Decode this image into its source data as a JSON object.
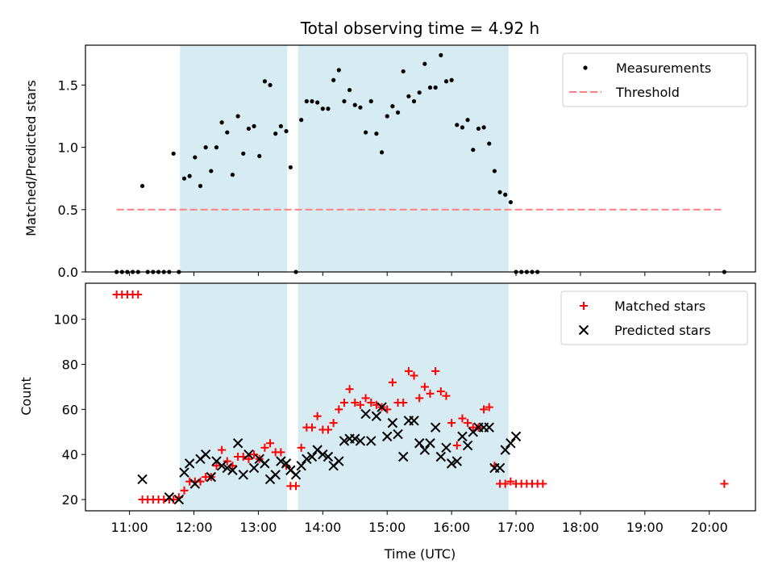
{
  "figure": {
    "title": "Total observing time = 4.92 h"
  },
  "chart_data": [
    {
      "type": "scatter",
      "panel": "top",
      "title": "Total observing time = 4.92 h",
      "xlabel": "",
      "ylabel": "Matched/Predicted stars",
      "xlim": [
        "10:19",
        "20:43"
      ],
      "ylim": [
        0,
        1.82
      ],
      "yticks": [
        0.0,
        0.5,
        1.0,
        1.5
      ],
      "ytick_labels": [
        "0.0",
        "0.5",
        "1.0",
        "1.5"
      ],
      "grid": false,
      "legend": "top-right",
      "shaded_intervals": [
        [
          "11:47",
          "13:27"
        ],
        [
          "13:37",
          "16:53"
        ]
      ],
      "series": [
        {
          "name": "Measurements",
          "style": "points",
          "color": "#000000",
          "points": [
            [
              "10:48",
              0.0
            ],
            [
              "10:53",
              0.0
            ],
            [
              "10:58",
              0.0
            ],
            [
              "11:03",
              0.0
            ],
            [
              "11:08",
              0.0
            ],
            [
              "11:12",
              0.69
            ],
            [
              "11:17",
              0.0
            ],
            [
              "11:22",
              0.0
            ],
            [
              "11:27",
              0.0
            ],
            [
              "11:32",
              0.0
            ],
            [
              "11:37",
              0.0
            ],
            [
              "11:41",
              0.95
            ],
            [
              "11:46",
              0.0
            ],
            [
              "11:51",
              0.75
            ],
            [
              "11:56",
              0.77
            ],
            [
              "12:01",
              0.92
            ],
            [
              "12:06",
              0.69
            ],
            [
              "12:11",
              1.0
            ],
            [
              "12:16",
              0.81
            ],
            [
              "12:21",
              1.0
            ],
            [
              "12:26",
              1.2
            ],
            [
              "12:31",
              1.12
            ],
            [
              "12:36",
              0.78
            ],
            [
              "12:41",
              1.25
            ],
            [
              "12:46",
              0.95
            ],
            [
              "12:51",
              1.15
            ],
            [
              "12:56",
              1.17
            ],
            [
              "13:01",
              0.93
            ],
            [
              "13:06",
              1.53
            ],
            [
              "13:11",
              1.5
            ],
            [
              "13:16",
              1.11
            ],
            [
              "13:21",
              1.17
            ],
            [
              "13:26",
              1.13
            ],
            [
              "13:30",
              0.84
            ],
            [
              "13:35",
              0.0
            ],
            [
              "13:40",
              1.22
            ],
            [
              "13:45",
              1.37
            ],
            [
              "13:50",
              1.37
            ],
            [
              "13:55",
              1.36
            ],
            [
              "14:00",
              1.31
            ],
            [
              "14:05",
              1.31
            ],
            [
              "14:10",
              1.54
            ],
            [
              "14:15",
              1.62
            ],
            [
              "14:20",
              1.37
            ],
            [
              "14:25",
              1.46
            ],
            [
              "14:30",
              1.34
            ],
            [
              "14:35",
              1.32
            ],
            [
              "14:40",
              1.12
            ],
            [
              "14:45",
              1.37
            ],
            [
              "14:50",
              1.11
            ],
            [
              "14:55",
              0.96
            ],
            [
              "15:00",
              1.25
            ],
            [
              "15:05",
              1.33
            ],
            [
              "15:10",
              1.28
            ],
            [
              "15:15",
              1.61
            ],
            [
              "15:20",
              1.41
            ],
            [
              "15:25",
              1.37
            ],
            [
              "15:30",
              1.44
            ],
            [
              "15:35",
              1.67
            ],
            [
              "15:40",
              1.48
            ],
            [
              "15:45",
              1.48
            ],
            [
              "15:50",
              1.74
            ],
            [
              "15:55",
              1.53
            ],
            [
              "16:00",
              1.54
            ],
            [
              "16:05",
              1.18
            ],
            [
              "16:10",
              1.16
            ],
            [
              "16:15",
              1.22
            ],
            [
              "16:20",
              0.98
            ],
            [
              "16:25",
              1.15
            ],
            [
              "16:30",
              1.16
            ],
            [
              "16:35",
              1.03
            ],
            [
              "16:40",
              0.81
            ],
            [
              "16:45",
              0.64
            ],
            [
              "16:50",
              0.62
            ],
            [
              "16:55",
              0.56
            ],
            [
              "17:00",
              0.0
            ],
            [
              "17:05",
              0.0
            ],
            [
              "17:10",
              0.0
            ],
            [
              "17:15",
              0.0
            ],
            [
              "17:20",
              0.0
            ],
            [
              "20:14",
              0.0
            ]
          ]
        },
        {
          "name": "Threshold",
          "style": "dashed-line",
          "color": "#ff8080",
          "points": [
            [
              "10:48",
              0.5
            ],
            [
              "20:14",
              0.5
            ]
          ]
        }
      ]
    },
    {
      "type": "scatter",
      "panel": "bottom",
      "title": "",
      "xlabel": "Time (UTC)",
      "ylabel": "Count",
      "xlim": [
        "10:19",
        "20:43"
      ],
      "ylim": [
        15,
        116
      ],
      "yticks": [
        20,
        40,
        60,
        80,
        100
      ],
      "ytick_labels": [
        "20",
        "40",
        "60",
        "80",
        "100"
      ],
      "xticks": [
        "11:00",
        "12:00",
        "13:00",
        "14:00",
        "15:00",
        "16:00",
        "17:00",
        "18:00",
        "19:00",
        "20:00"
      ],
      "xtick_labels": [
        "11:00",
        "12:00",
        "13:00",
        "14:00",
        "15:00",
        "16:00",
        "17:00",
        "18:00",
        "19:00",
        "20:00"
      ],
      "grid": false,
      "legend": "top-right",
      "shaded_intervals": [
        [
          "11:47",
          "13:27"
        ],
        [
          "13:37",
          "16:53"
        ]
      ],
      "series": [
        {
          "name": "Matched stars",
          "marker": "plus",
          "color": "#ff0000",
          "points": [
            [
              "10:48",
              111
            ],
            [
              "10:53",
              111
            ],
            [
              "10:58",
              111
            ],
            [
              "11:03",
              111
            ],
            [
              "11:08",
              111
            ],
            [
              "11:12",
              20
            ],
            [
              "11:17",
              20
            ],
            [
              "11:22",
              20
            ],
            [
              "11:27",
              20
            ],
            [
              "11:32",
              20
            ],
            [
              "11:37",
              20
            ],
            [
              "11:41",
              20
            ],
            [
              "11:46",
              21
            ],
            [
              "11:51",
              24
            ],
            [
              "11:56",
              28
            ],
            [
              "12:01",
              28
            ],
            [
              "12:06",
              28
            ],
            [
              "12:11",
              30
            ],
            [
              "12:16",
              30
            ],
            [
              "12:21",
              35
            ],
            [
              "12:26",
              42
            ],
            [
              "12:31",
              37
            ],
            [
              "12:36",
              35
            ],
            [
              "12:41",
              39
            ],
            [
              "12:46",
              39
            ],
            [
              "12:51",
              38
            ],
            [
              "12:56",
              40
            ],
            [
              "13:01",
              38
            ],
            [
              "13:06",
              43
            ],
            [
              "13:11",
              45
            ],
            [
              "13:16",
              41
            ],
            [
              "13:21",
              41
            ],
            [
              "13:26",
              35
            ],
            [
              "13:30",
              26
            ],
            [
              "13:35",
              26
            ],
            [
              "13:40",
              43
            ],
            [
              "13:45",
              52
            ],
            [
              "13:50",
              52
            ],
            [
              "13:55",
              57
            ],
            [
              "14:00",
              51
            ],
            [
              "14:05",
              51
            ],
            [
              "14:10",
              54
            ],
            [
              "14:15",
              60
            ],
            [
              "14:20",
              63
            ],
            [
              "14:25",
              69
            ],
            [
              "14:30",
              63
            ],
            [
              "14:35",
              62
            ],
            [
              "14:40",
              65
            ],
            [
              "14:45",
              63
            ],
            [
              "14:50",
              62
            ],
            [
              "14:55",
              61
            ],
            [
              "15:00",
              60
            ],
            [
              "15:05",
              72
            ],
            [
              "15:10",
              63
            ],
            [
              "15:15",
              63
            ],
            [
              "15:20",
              77
            ],
            [
              "15:25",
              75
            ],
            [
              "15:30",
              65
            ],
            [
              "15:35",
              70
            ],
            [
              "15:40",
              67
            ],
            [
              "15:45",
              77
            ],
            [
              "15:50",
              68
            ],
            [
              "15:55",
              66
            ],
            [
              "16:00",
              54
            ],
            [
              "16:05",
              44
            ],
            [
              "16:10",
              56
            ],
            [
              "16:15",
              54
            ],
            [
              "16:20",
              52
            ],
            [
              "16:25",
              52
            ],
            [
              "16:30",
              60
            ],
            [
              "16:35",
              61
            ],
            [
              "16:40",
              35
            ],
            [
              "16:45",
              27
            ],
            [
              "16:50",
              27
            ],
            [
              "16:55",
              28
            ],
            [
              "17:00",
              27
            ],
            [
              "17:05",
              27
            ],
            [
              "17:10",
              27
            ],
            [
              "17:15",
              27
            ],
            [
              "17:20",
              27
            ],
            [
              "17:25",
              27
            ],
            [
              "20:14",
              27
            ]
          ]
        },
        {
          "name": "Predicted stars",
          "marker": "x",
          "color": "#000000",
          "points": [
            [
              "11:12",
              29
            ],
            [
              "11:37",
              21
            ],
            [
              "11:46",
              20
            ],
            [
              "11:51",
              32
            ],
            [
              "11:56",
              36
            ],
            [
              "12:01",
              27
            ],
            [
              "12:06",
              38
            ],
            [
              "12:11",
              40
            ],
            [
              "12:16",
              30
            ],
            [
              "12:21",
              37
            ],
            [
              "12:26",
              35
            ],
            [
              "12:31",
              34
            ],
            [
              "12:36",
              33
            ],
            [
              "12:41",
              45
            ],
            [
              "12:46",
              31
            ],
            [
              "12:51",
              40
            ],
            [
              "12:56",
              34
            ],
            [
              "13:01",
              38
            ],
            [
              "13:06",
              36
            ],
            [
              "13:11",
              29
            ],
            [
              "13:16",
              31
            ],
            [
              "13:21",
              37
            ],
            [
              "13:26",
              36
            ],
            [
              "13:30",
              33
            ],
            [
              "13:35",
              31
            ],
            [
              "13:40",
              35
            ],
            [
              "13:45",
              38
            ],
            [
              "13:50",
              39
            ],
            [
              "13:55",
              42
            ],
            [
              "14:00",
              40
            ],
            [
              "14:05",
              39
            ],
            [
              "14:10",
              35
            ],
            [
              "14:15",
              37
            ],
            [
              "14:20",
              46
            ],
            [
              "14:25",
              47
            ],
            [
              "14:30",
              47
            ],
            [
              "14:35",
              46
            ],
            [
              "14:40",
              58
            ],
            [
              "14:45",
              46
            ],
            [
              "14:50",
              57
            ],
            [
              "14:55",
              61
            ],
            [
              "15:00",
              48
            ],
            [
              "15:05",
              54
            ],
            [
              "15:10",
              49
            ],
            [
              "15:15",
              39
            ],
            [
              "15:20",
              55
            ],
            [
              "15:25",
              55
            ],
            [
              "15:30",
              45
            ],
            [
              "15:35",
              42
            ],
            [
              "15:40",
              45
            ],
            [
              "15:45",
              52
            ],
            [
              "15:50",
              39
            ],
            [
              "15:55",
              43
            ],
            [
              "16:00",
              36
            ],
            [
              "16:05",
              37
            ],
            [
              "16:10",
              48
            ],
            [
              "16:15",
              44
            ],
            [
              "16:20",
              50
            ],
            [
              "16:25",
              52
            ],
            [
              "16:30",
              52
            ],
            [
              "16:35",
              52
            ],
            [
              "16:40",
              34
            ],
            [
              "16:45",
              34
            ],
            [
              "16:50",
              42
            ],
            [
              "16:55",
              45
            ],
            [
              "17:00",
              48
            ]
          ]
        }
      ]
    }
  ]
}
